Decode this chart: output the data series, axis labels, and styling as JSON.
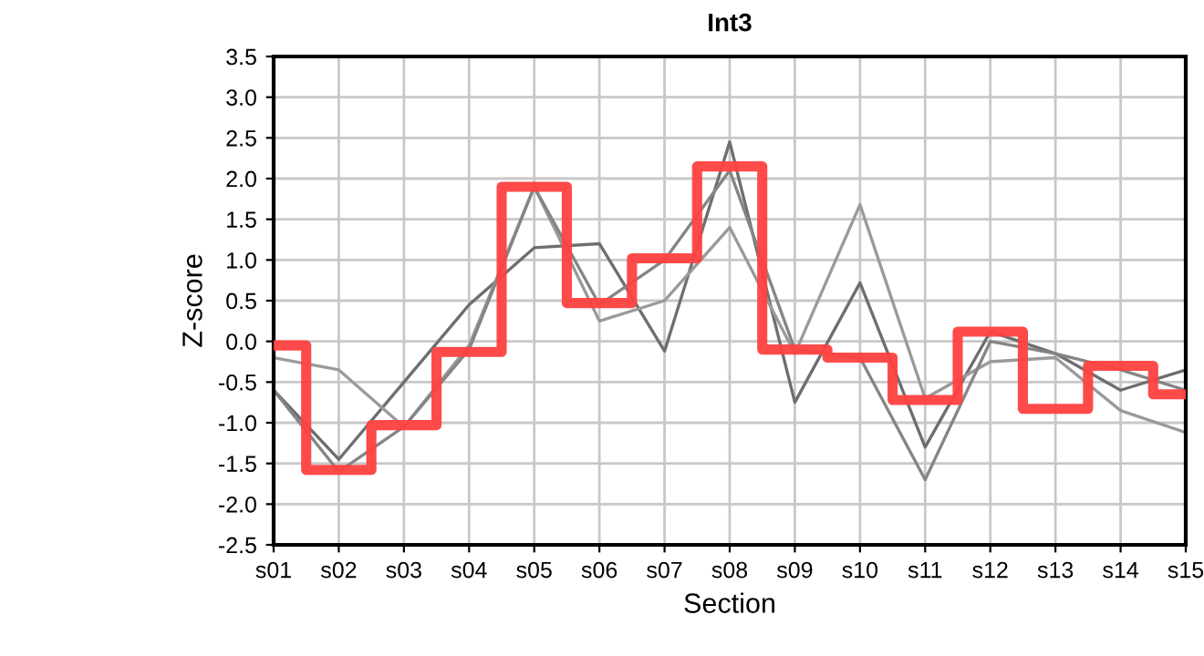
{
  "chart_data": {
    "type": "line",
    "title": "Int3",
    "xlabel": "Section",
    "ylabel": "Z-score",
    "categories": [
      "s01",
      "s02",
      "s03",
      "s04",
      "s05",
      "s06",
      "s07",
      "s08",
      "s09",
      "s10",
      "s11",
      "s12",
      "s13",
      "s14",
      "s15"
    ],
    "series": [
      {
        "color": "#6e6e6e",
        "values": [
          -0.6,
          -1.45,
          -0.5,
          0.45,
          1.15,
          1.2,
          -0.12,
          2.45,
          -0.75,
          0.72,
          -1.3,
          0.12,
          -0.15,
          -0.6,
          -0.35
        ]
      },
      {
        "color": "#9a9a9a",
        "values": [
          -0.2,
          -0.35,
          -1.05,
          -0.05,
          1.9,
          0.25,
          0.5,
          1.4,
          -0.15,
          1.68,
          -0.7,
          -0.25,
          -0.2,
          -0.85,
          -1.12
        ]
      },
      {
        "color": "#858585",
        "values": [
          -0.6,
          -1.6,
          -1.05,
          -0.1,
          1.9,
          0.45,
          1.0,
          2.1,
          -0.1,
          -0.2,
          -1.7,
          0.0,
          -0.15,
          -0.35,
          -0.6
        ]
      },
      {
        "type": "step",
        "color": "#ff4040",
        "values": [
          -0.05,
          -1.58,
          -1.03,
          -0.13,
          1.9,
          0.47,
          1.02,
          2.15,
          -0.1,
          -0.2,
          -0.72,
          0.12,
          -0.83,
          -0.3,
          -0.65
        ]
      }
    ],
    "ylim": [
      -2.5,
      3.5
    ],
    "yticks": [
      {
        "value": -2.5,
        "label": "-2.5"
      },
      {
        "value": -2.0,
        "label": "-2.0"
      },
      {
        "value": -1.5,
        "label": "-1.5"
      },
      {
        "value": -1.0,
        "label": "-1.0"
      },
      {
        "value": -0.5,
        "label": "-0.5"
      },
      {
        "value": 0.0,
        "label": "0.0"
      },
      {
        "value": 0.5,
        "label": "0.5"
      },
      {
        "value": 1.0,
        "label": "1.0"
      },
      {
        "value": 1.5,
        "label": "1.5"
      },
      {
        "value": 2.0,
        "label": "2.0"
      },
      {
        "value": 2.5,
        "label": "2.5"
      },
      {
        "value": 3.0,
        "label": "3.0"
      },
      {
        "value": 3.5,
        "label": "3.5"
      }
    ],
    "grid": true,
    "legend": false
  }
}
